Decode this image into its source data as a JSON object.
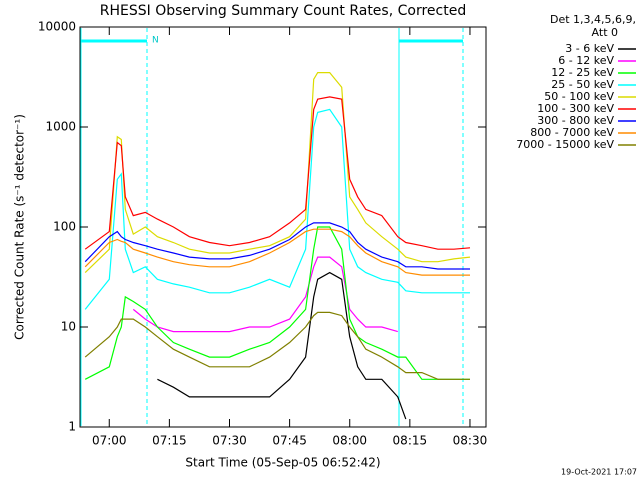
{
  "chart_data": {
    "type": "line",
    "title": "RHESSI Observing Summary Count Rates, Corrected",
    "xlabel": "Start Time (05-Sep-05 06:52:42)",
    "ylabel": "Corrected Count Rate (s⁻¹ detector⁻¹)",
    "legend_title": [
      "Det 1,3,4,5,6,9,",
      "Att 0"
    ],
    "annotations": [
      "N"
    ],
    "timestamp": "19-Oct-2021 17:07",
    "log_y": true,
    "legend": "right",
    "xlim": [
      "06:52:42",
      "08:34"
    ],
    "ylim": [
      1,
      10000
    ],
    "xticks": [
      "07:00",
      "07:15",
      "07:30",
      "07:45",
      "08:00",
      "08:15",
      "08:30"
    ],
    "yticks": [
      1,
      10,
      100,
      1000,
      10000
    ],
    "x": [
      "06:54",
      "07:00",
      "07:02",
      "07:03",
      "07:04",
      "07:06",
      "07:09",
      "07:12",
      "07:16",
      "07:20",
      "07:25",
      "07:30",
      "07:35",
      "07:40",
      "07:45",
      "07:49",
      "07:51",
      "07:52",
      "07:55",
      "07:58",
      "08:00",
      "08:02",
      "08:04",
      "08:08",
      "08:12",
      "08:14",
      "08:18",
      "08:22",
      "08:26",
      "08:30"
    ],
    "series": [
      {
        "name": "3 - 6 keV",
        "color": "#000000",
        "values": [
          null,
          null,
          null,
          null,
          null,
          null,
          null,
          3,
          2.5,
          2,
          2,
          2,
          2,
          2,
          3,
          5,
          20,
          30,
          35,
          30,
          8,
          4,
          3,
          3,
          2,
          1.2,
          null,
          null,
          null,
          null
        ]
      },
      {
        "name": "6 - 12 keV",
        "color": "#ff00ff",
        "values": [
          null,
          null,
          null,
          null,
          null,
          15,
          12,
          10,
          9,
          9,
          9,
          9,
          10,
          10,
          12,
          20,
          40,
          50,
          50,
          40,
          15,
          12,
          10,
          10,
          9,
          null,
          null,
          null,
          null,
          null
        ]
      },
      {
        "name": "12 - 25 keV",
        "color": "#00ff00",
        "values": [
          3,
          4,
          8,
          10,
          20,
          18,
          15,
          10,
          7,
          6,
          5,
          5,
          6,
          7,
          10,
          15,
          60,
          100,
          100,
          60,
          12,
          8,
          7,
          6,
          5,
          5,
          3,
          3,
          3,
          3
        ]
      },
      {
        "name": "25 - 50 keV",
        "color": "#00ffff",
        "values": [
          15,
          30,
          300,
          340,
          60,
          35,
          40,
          30,
          27,
          25,
          22,
          22,
          25,
          30,
          25,
          60,
          1000,
          1400,
          1500,
          1000,
          60,
          40,
          35,
          30,
          28,
          23,
          22,
          22,
          22,
          22
        ]
      },
      {
        "name": "50 - 100 keV",
        "color": "#dcdc00",
        "values": [
          35,
          60,
          800,
          750,
          150,
          85,
          100,
          80,
          70,
          60,
          55,
          55,
          60,
          65,
          80,
          120,
          3000,
          3500,
          3500,
          2500,
          200,
          150,
          110,
          80,
          60,
          50,
          45,
          45,
          48,
          50
        ]
      },
      {
        "name": "100 - 300 keV",
        "color": "#ff0000",
        "values": [
          60,
          90,
          700,
          650,
          200,
          130,
          140,
          120,
          100,
          80,
          70,
          65,
          70,
          80,
          110,
          150,
          1500,
          1900,
          2000,
          1900,
          300,
          200,
          150,
          130,
          80,
          70,
          65,
          60,
          60,
          62
        ]
      },
      {
        "name": "300 - 800 keV",
        "color": "#0000ff",
        "values": [
          45,
          80,
          90,
          80,
          75,
          70,
          65,
          60,
          55,
          50,
          48,
          48,
          52,
          60,
          75,
          100,
          110,
          110,
          110,
          100,
          90,
          70,
          60,
          50,
          45,
          40,
          40,
          38,
          38,
          38
        ]
      },
      {
        "name": "800 - 7000 keV",
        "color": "#ff8c00",
        "values": [
          40,
          70,
          75,
          72,
          70,
          60,
          55,
          50,
          45,
          42,
          40,
          40,
          45,
          55,
          70,
          90,
          95,
          95,
          95,
          90,
          80,
          65,
          55,
          45,
          40,
          35,
          33,
          33,
          33,
          33
        ]
      },
      {
        "name": "7000 - 15000 keV",
        "color": "#808000",
        "values": [
          5,
          8,
          10,
          12,
          12,
          12,
          10,
          8,
          6,
          5,
          4,
          4,
          4,
          5,
          7,
          10,
          13,
          14,
          14,
          13,
          10,
          8,
          6,
          5,
          4,
          3.5,
          3.5,
          3,
          3,
          3
        ]
      }
    ]
  }
}
